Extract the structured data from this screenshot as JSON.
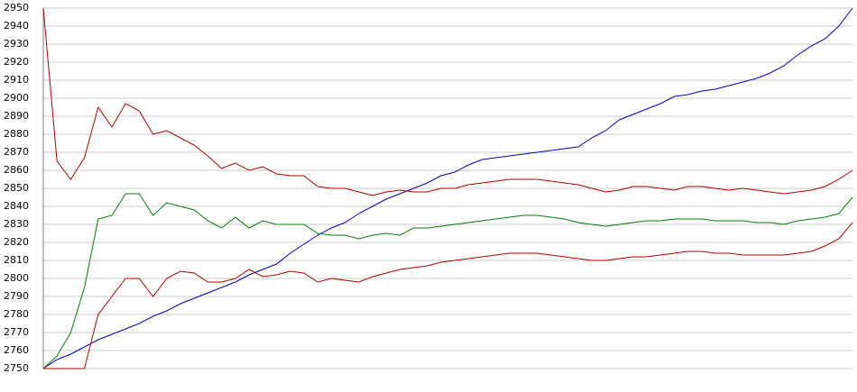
{
  "chart_data": {
    "type": "line",
    "categories": [
      null,
      null,
      null,
      null,
      null,
      null,
      null,
      null,
      null,
      null,
      null,
      null,
      null,
      null,
      null,
      null,
      null,
      null,
      null,
      null,
      null,
      null,
      null,
      null,
      null,
      null,
      null,
      null,
      null,
      null,
      null,
      null,
      null,
      null,
      null,
      null,
      null,
      null,
      null,
      null,
      null,
      null,
      null,
      null,
      null,
      null,
      null,
      null,
      null,
      null,
      null,
      null,
      null,
      null,
      null,
      null,
      null,
      null,
      null,
      null
    ],
    "series": [
      {
        "color": "#0000c0",
        "values": [
          2750,
          2755,
          2758,
          2762,
          2766,
          2769,
          2772,
          2775,
          2779,
          2782,
          2786,
          2789,
          2792,
          2795,
          2798,
          2802,
          2805,
          2808,
          2814,
          2819,
          2824,
          2828,
          2831,
          2836,
          2840,
          2844,
          2847,
          2850,
          2853,
          2857,
          2859,
          2863,
          2866,
          2867,
          2868,
          2869,
          2870,
          2871,
          2872,
          2873,
          2878,
          2882,
          2888,
          2891,
          2894,
          2897,
          2901,
          2902,
          2904,
          2905,
          2907,
          2909,
          2911,
          2914,
          2918,
          2924,
          2929,
          2933,
          2940,
          2950
        ]
      },
      {
        "color": "#b00000",
        "values": [
          2950,
          2865,
          2855,
          2867,
          2895,
          2884,
          2897,
          2893,
          2880,
          2882,
          2878,
          2874,
          2868,
          2861,
          2864,
          2860,
          2862,
          2858,
          2857,
          2857,
          2851,
          2850,
          2850,
          2848,
          2846,
          2848,
          2849,
          2848,
          2848,
          2850,
          2850,
          2852,
          2853,
          2854,
          2855,
          2855,
          2855,
          2854,
          2853,
          2852,
          2850,
          2848,
          2849,
          2851,
          2851,
          2850,
          2849,
          2851,
          2851,
          2850,
          2849,
          2850,
          2849,
          2848,
          2847,
          2848,
          2849,
          2851,
          2855,
          2860
        ]
      },
      {
        "color": "#008000",
        "values": [
          2750,
          2757,
          2770,
          2795,
          2833,
          2835,
          2847,
          2847,
          2835,
          2842,
          2840,
          2838,
          2832,
          2828,
          2834,
          2828,
          2832,
          2830,
          2830,
          2830,
          2825,
          2824,
          2824,
          2822,
          2824,
          2825,
          2824,
          2828,
          2828,
          2829,
          2830,
          2831,
          2832,
          2833,
          2834,
          2835,
          2835,
          2834,
          2833,
          2831,
          2830,
          2829,
          2830,
          2831,
          2832,
          2832,
          2833,
          2833,
          2833,
          2832,
          2832,
          2832,
          2831,
          2831,
          2830,
          2832,
          2833,
          2834,
          2836,
          2845
        ]
      },
      {
        "color": "#b00000",
        "values": [
          2750,
          2750,
          2750,
          2750,
          2780,
          2790,
          2800,
          2800,
          2790,
          2800,
          2804,
          2803,
          2798,
          2798,
          2800,
          2805,
          2801,
          2802,
          2804,
          2803,
          2798,
          2800,
          2799,
          2798,
          2801,
          2803,
          2805,
          2806,
          2807,
          2809,
          2810,
          2811,
          2812,
          2813,
          2814,
          2814,
          2814,
          2813,
          2812,
          2811,
          2810,
          2810,
          2811,
          2812,
          2812,
          2813,
          2814,
          2815,
          2815,
          2814,
          2814,
          2813,
          2813,
          2813,
          2813,
          2814,
          2815,
          2818,
          2822,
          2831
        ]
      }
    ],
    "ylim": [
      2750,
      2950
    ],
    "yticks": [
      2750,
      2760,
      2770,
      2780,
      2790,
      2800,
      2810,
      2820,
      2830,
      2840,
      2850,
      2860,
      2870,
      2880,
      2890,
      2900,
      2910,
      2920,
      2930,
      2940,
      2950
    ],
    "grid": true
  }
}
